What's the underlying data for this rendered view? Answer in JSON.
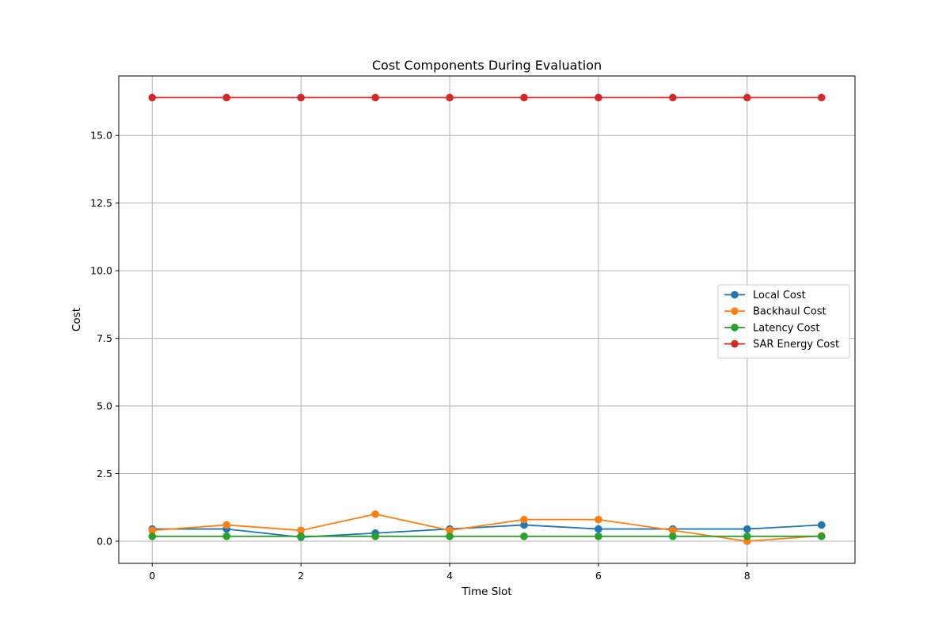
{
  "chart_data": {
    "type": "line",
    "title": "Cost Components During Evaluation",
    "xlabel": "Time Slot",
    "ylabel": "Cost",
    "x": [
      0,
      1,
      2,
      3,
      4,
      5,
      6,
      7,
      8,
      9
    ],
    "xlim": [
      -0.45,
      9.45
    ],
    "ylim": [
      -0.82,
      17.2
    ],
    "xticks": [
      0,
      2,
      4,
      6,
      8
    ],
    "xtick_labels": [
      "0",
      "2",
      "4",
      "6",
      "8"
    ],
    "yticks": [
      0.0,
      2.5,
      5.0,
      7.5,
      10.0,
      12.5,
      15.0
    ],
    "ytick_labels": [
      "0.0",
      "2.5",
      "5.0",
      "7.5",
      "10.0",
      "12.5",
      "15.0"
    ],
    "grid": true,
    "legend_position": "center-right",
    "series": [
      {
        "name": "Local Cost",
        "color": "#1f77b4",
        "values": [
          0.45,
          0.45,
          0.15,
          0.3,
          0.45,
          0.6,
          0.45,
          0.45,
          0.45,
          0.6
        ]
      },
      {
        "name": "Backhaul Cost",
        "color": "#ff7f0e",
        "values": [
          0.4,
          0.6,
          0.4,
          1.0,
          0.4,
          0.8,
          0.8,
          0.4,
          0.0,
          0.2
        ]
      },
      {
        "name": "Latency Cost",
        "color": "#2ca02c",
        "values": [
          0.18,
          0.18,
          0.18,
          0.18,
          0.18,
          0.18,
          0.18,
          0.18,
          0.18,
          0.18
        ]
      },
      {
        "name": "SAR Energy Cost",
        "color": "#d62728",
        "values": [
          16.4,
          16.4,
          16.4,
          16.4,
          16.4,
          16.4,
          16.4,
          16.4,
          16.4,
          16.4
        ]
      }
    ]
  }
}
